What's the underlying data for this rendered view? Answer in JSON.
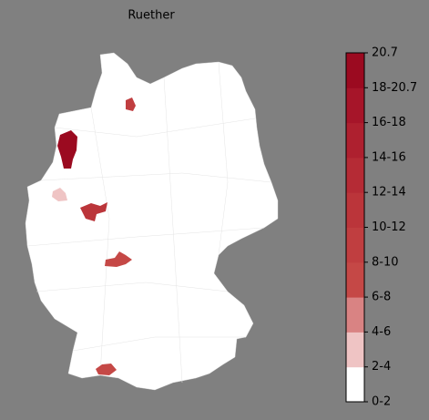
{
  "title": "Ruether",
  "colorbar": {
    "labels": [
      "0-2",
      "2-4",
      "4-6",
      "6-8",
      "8-10",
      "10-12",
      "12-14",
      "14-16",
      "16-18",
      "18-20.7",
      "20.7"
    ],
    "colors": [
      "#ffffff",
      "#efc4c4",
      "#d98383",
      "#c54846",
      "#c03e40",
      "#bb353a",
      "#b52b35",
      "#ae202f",
      "#a61529",
      "#9b0a20"
    ]
  }
}
